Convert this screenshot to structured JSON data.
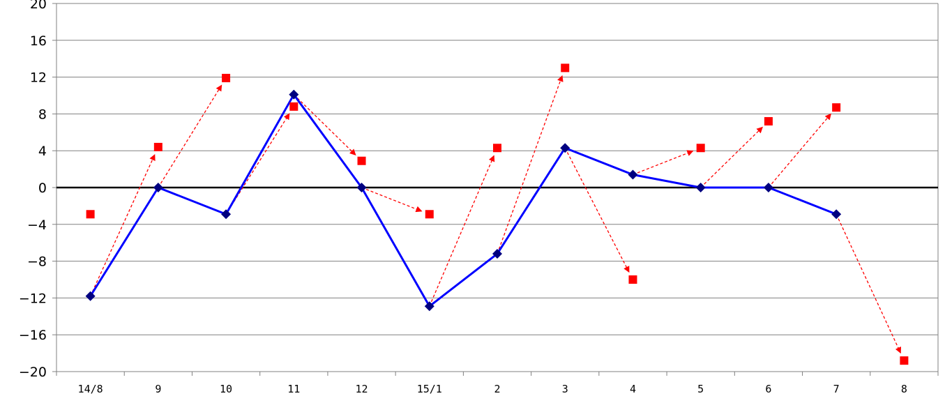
{
  "chart_data": {
    "type": "line",
    "title": "",
    "xlabel": "",
    "ylabel": "",
    "categories": [
      "14/8",
      "9",
      "10",
      "11",
      "12",
      "15/1",
      "2",
      "3",
      "4",
      "5",
      "6",
      "7",
      "8"
    ],
    "ylim": [
      -20,
      20
    ],
    "yticks": [
      20,
      16,
      12,
      8,
      4,
      0,
      -4,
      -8,
      -12,
      -16,
      -20
    ],
    "ytick_labels": [
      "20",
      "16",
      "12",
      "8",
      "4",
      "0",
      "−4",
      "−8",
      "−12",
      "−16",
      "−20"
    ],
    "grid": "horizontal",
    "legend": "none",
    "series": [
      {
        "role": "actual",
        "color": "#0000ff",
        "marker": "diamond",
        "marker_color": "#000080",
        "line_style": "solid",
        "values": [
          -11.8,
          0,
          -2.9,
          10.1,
          0,
          -12.9,
          -7.2,
          4.3,
          1.4,
          0,
          0,
          -2.9,
          null
        ]
      },
      {
        "role": "forecast",
        "color": "#ff0000",
        "marker": "square",
        "line_style": "none",
        "values": [
          -2.9,
          4.4,
          11.9,
          8.8,
          2.9,
          -2.9,
          4.3,
          13.0,
          -10.0,
          4.3,
          7.2,
          8.7,
          -18.8
        ]
      }
    ],
    "arrows": {
      "color": "#ff0000",
      "line_style": "dashed",
      "description_source": "each arrow goes from an actual point to the next month's forecast point",
      "pairs": [
        {
          "from": 0,
          "to": 1
        },
        {
          "from": 1,
          "to": 2
        },
        {
          "from": 2,
          "to": 3
        },
        {
          "from": 3,
          "to": 4
        },
        {
          "from": 4,
          "to": 5
        },
        {
          "from": 5,
          "to": 6
        },
        {
          "from": 6,
          "to": 7
        },
        {
          "from": 7,
          "to": 8
        },
        {
          "from": 8,
          "to": 9
        },
        {
          "from": 9,
          "to": 10
        },
        {
          "from": 10,
          "to": 11
        },
        {
          "from": 11,
          "to": 12
        }
      ]
    },
    "colors": {
      "grid": "#808080",
      "zero_line": "#000000",
      "axis": "#808080"
    }
  }
}
